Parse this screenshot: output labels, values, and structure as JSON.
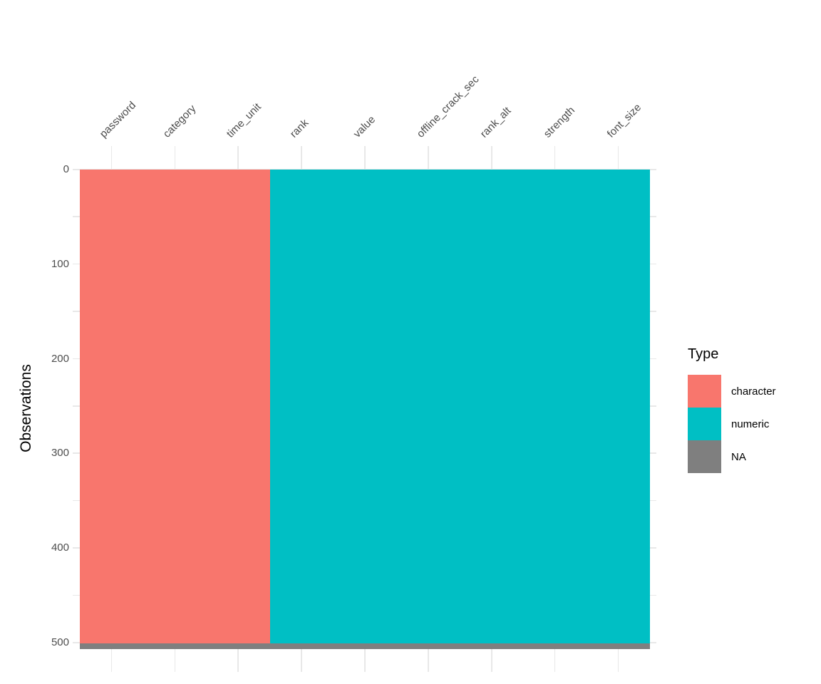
{
  "figure": {
    "ylabel": "Observations",
    "legend_title": "Type"
  },
  "chart_data": {
    "type": "heatmap",
    "title": "",
    "xlabel": "",
    "ylabel": "Observations",
    "x_axis_position": "top",
    "legend_position": "right",
    "grid": true,
    "columns": [
      "password",
      "category",
      "time_unit",
      "rank",
      "value",
      "offline_crack_sec",
      "rank_alt",
      "strength",
      "font_size"
    ],
    "column_types": [
      "character",
      "character",
      "character",
      "numeric",
      "numeric",
      "numeric",
      "numeric",
      "numeric",
      "numeric"
    ],
    "y_ticks": [
      0,
      100,
      200,
      300,
      400,
      500
    ],
    "y_minor_step": 50,
    "ylim": [
      0,
      506
    ],
    "n_observations": 500,
    "na_band": {
      "start_observation": 500,
      "end_observation": 506,
      "applies_to": "all_columns"
    },
    "legend": {
      "title": "Type",
      "entries": [
        {
          "label": "character",
          "color": "#F8766D"
        },
        {
          "label": "numeric",
          "color": "#00BFC4"
        },
        {
          "label": "NA",
          "color": "#7F7F7F"
        }
      ]
    },
    "colors": {
      "character": "#F8766D",
      "numeric": "#00BFC4",
      "na": "#7F7F7F",
      "gridline": "#E8E8E8",
      "axis_text": "#4D4D4D",
      "title_text": "#000000",
      "background": "#FFFFFF"
    }
  }
}
